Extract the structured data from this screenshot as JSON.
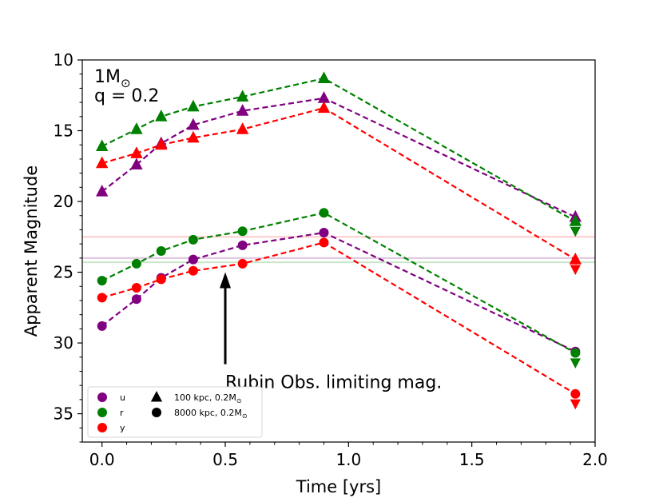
{
  "chart_data": {
    "type": "line",
    "xlabel": "Time [yrs]",
    "ylabel": "Apparent Magnitude",
    "xlim": [
      -0.08,
      2.0
    ],
    "ylim": [
      37,
      10
    ],
    "y_inverted": true,
    "xticks": [
      "0.0",
      "0.5",
      "1.0",
      "1.5",
      "2.0"
    ],
    "yticks": [
      "10",
      "15",
      "20",
      "25",
      "30",
      "35"
    ],
    "mass_label": "1M",
    "mass_label_symbol": "⊙",
    "q_label": "q = 0.2",
    "annotation": {
      "text": "Rubin Obs. limiting mag.",
      "arrow_from": [
        0.5,
        31.5
      ],
      "arrow_to": [
        0.5,
        25.0
      ]
    },
    "limiting_mags": [
      {
        "band": "y",
        "value": 22.5,
        "color": "#ffcccc"
      },
      {
        "band": "u",
        "value": 24.0,
        "color": "#ddc4dd"
      },
      {
        "band": "r",
        "value": 24.3,
        "color": "#c8e6c8"
      }
    ],
    "colors": {
      "u": "#800080",
      "r": "#008000",
      "y": "#ff0000"
    },
    "series": [
      {
        "name": "u, 100 kpc",
        "band": "u",
        "marker": "triangle",
        "x": [
          0.0,
          0.14,
          0.24,
          0.37,
          0.57,
          0.9,
          1.92
        ],
        "y": [
          19.3,
          17.4,
          15.9,
          14.6,
          13.6,
          12.7,
          21.1
        ],
        "last_upper_limit": false
      },
      {
        "name": "r, 100 kpc",
        "band": "r",
        "marker": "triangle",
        "x": [
          0.0,
          0.14,
          0.24,
          0.37,
          0.57,
          0.9,
          1.92
        ],
        "y": [
          16.1,
          14.9,
          14.0,
          13.3,
          12.6,
          11.3,
          21.4
        ],
        "last_upper_limit": true
      },
      {
        "name": "y, 100 kpc",
        "band": "y",
        "marker": "triangle",
        "x": [
          0.0,
          0.14,
          0.24,
          0.37,
          0.57,
          0.9,
          1.92
        ],
        "y": [
          17.3,
          16.6,
          16.0,
          15.5,
          14.9,
          13.4,
          24.1
        ],
        "last_upper_limit": true
      },
      {
        "name": "u, 8000 kpc",
        "band": "u",
        "marker": "circle",
        "x": [
          0.0,
          0.14,
          0.24,
          0.37,
          0.57,
          0.9,
          1.92
        ],
        "y": [
          28.8,
          26.9,
          25.4,
          24.1,
          23.1,
          22.2,
          30.6
        ],
        "last_upper_limit": false
      },
      {
        "name": "r, 8000 kpc",
        "band": "r",
        "marker": "circle",
        "x": [
          0.0,
          0.14,
          0.24,
          0.37,
          0.57,
          0.9,
          1.92
        ],
        "y": [
          25.6,
          24.4,
          23.5,
          22.7,
          22.1,
          20.8,
          30.7
        ],
        "last_upper_limit": true
      },
      {
        "name": "y, 8000 kpc",
        "band": "y",
        "marker": "circle",
        "x": [
          0.0,
          0.14,
          0.24,
          0.37,
          0.57,
          0.9,
          1.92
        ],
        "y": [
          26.8,
          26.1,
          25.5,
          24.9,
          24.4,
          22.9,
          33.6
        ],
        "last_upper_limit": true
      }
    ],
    "legend": {
      "placement": "lower-left",
      "bands": [
        {
          "label": "u",
          "band": "u"
        },
        {
          "label": "r",
          "band": "r"
        },
        {
          "label": "y",
          "band": "y"
        }
      ],
      "distances": [
        {
          "label": "100 kpc, 0.2M",
          "symbol": "⊙",
          "marker": "triangle"
        },
        {
          "label": "8000 kpc, 0.2M",
          "symbol": "⊙",
          "marker": "circle"
        }
      ]
    }
  }
}
